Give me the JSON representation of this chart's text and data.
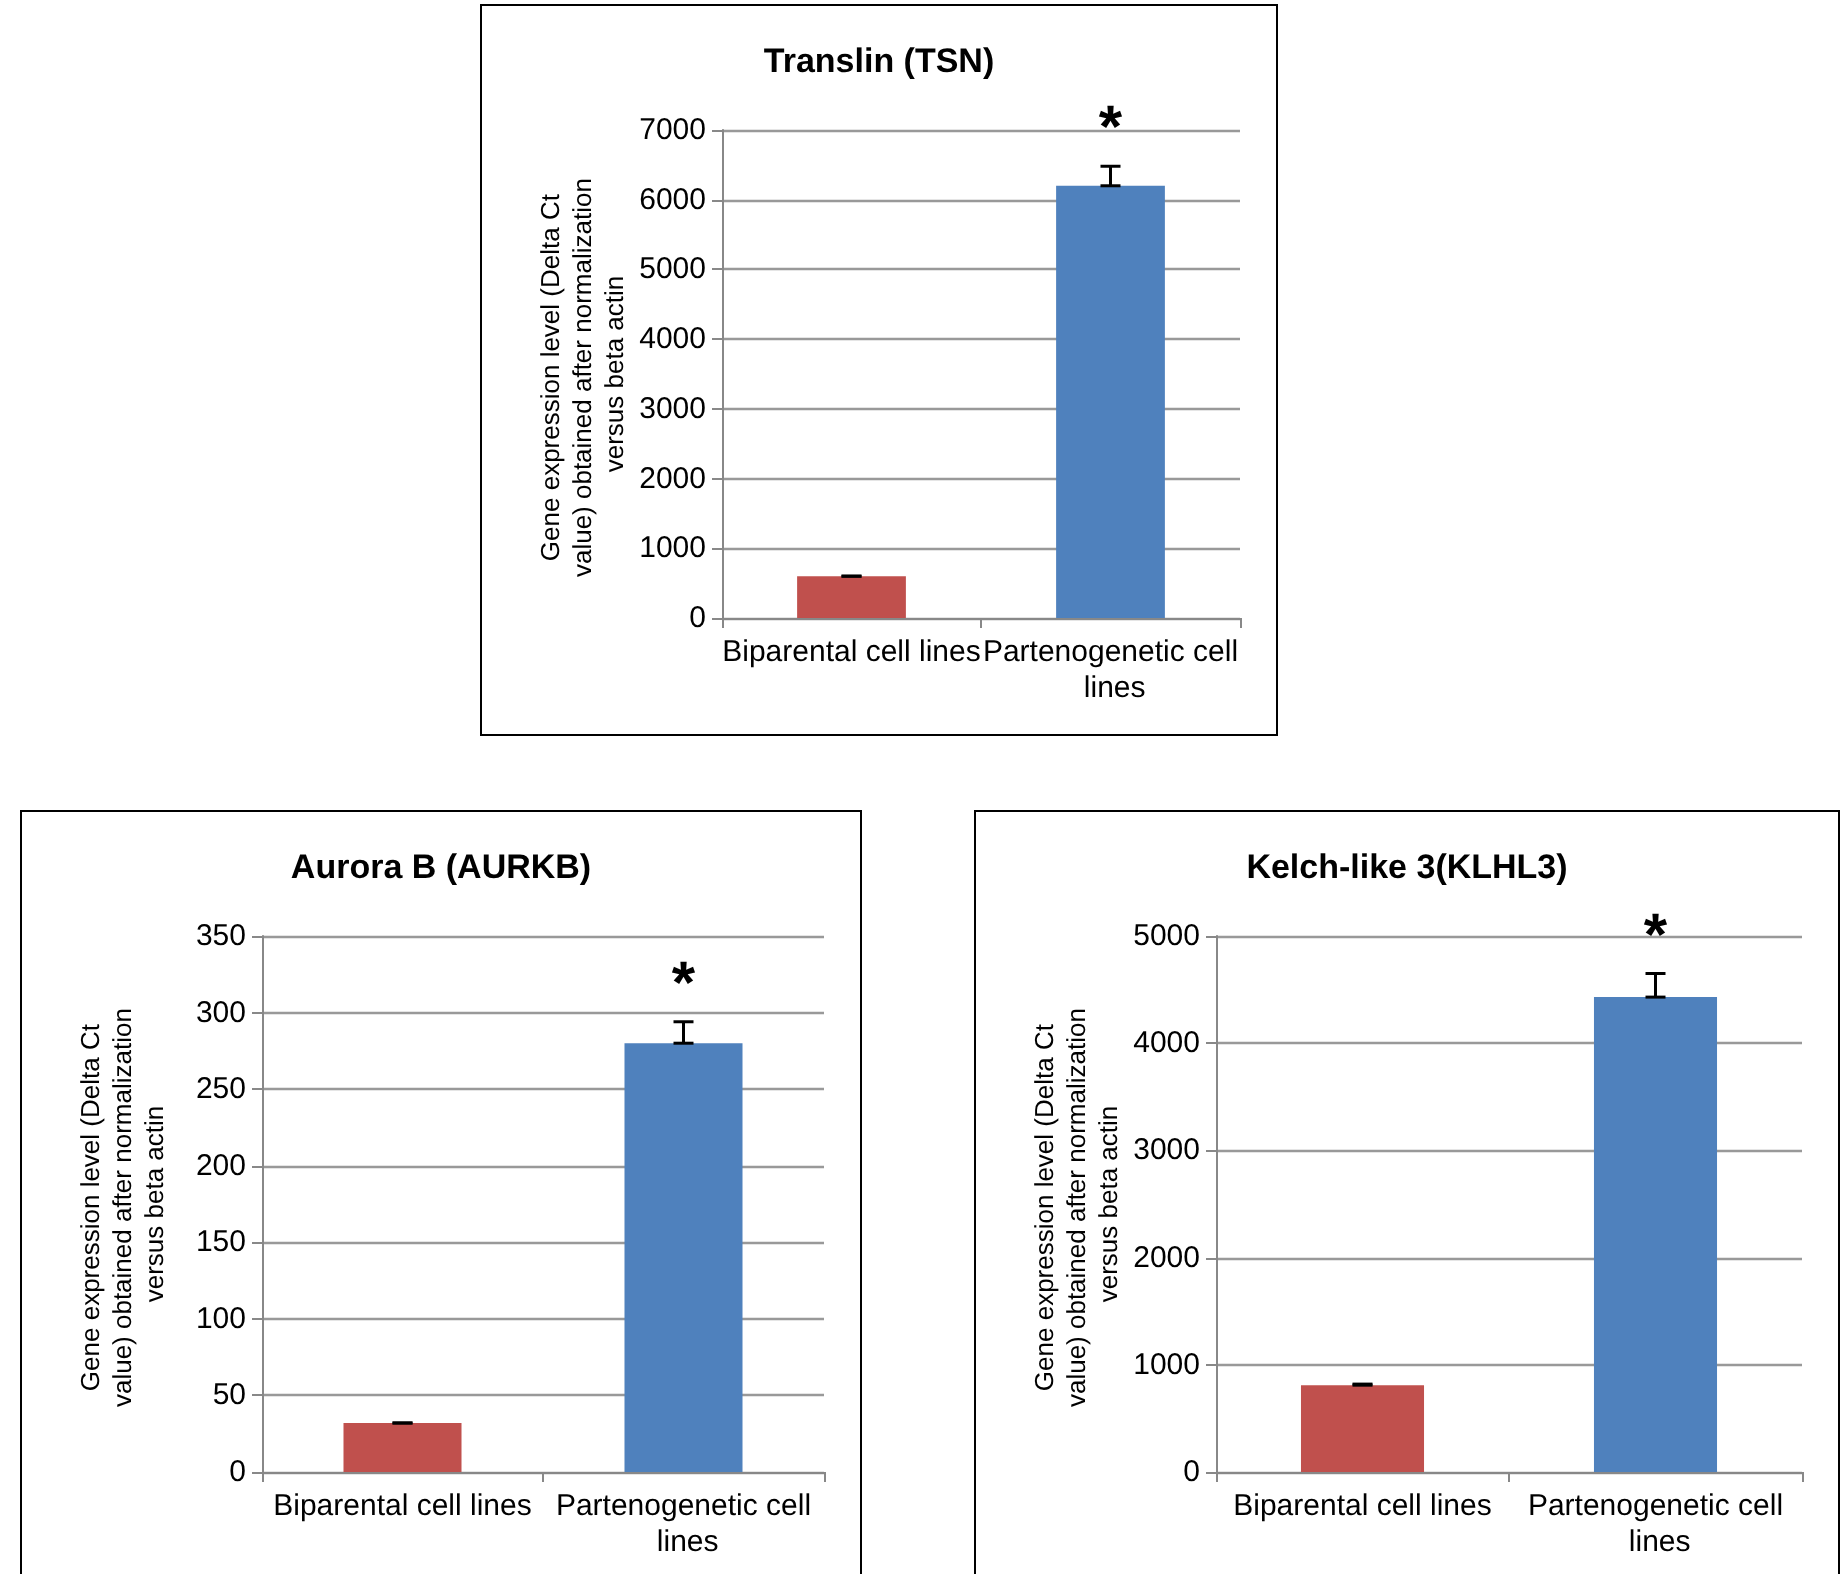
{
  "chart_data": [
    {
      "type": "bar",
      "title": "Translin (TSN)",
      "ylabel": "Gene expression level (Delta Ct value) obtained after normalization versus beta actin",
      "categories": [
        "Biparental cell lines",
        "Partenogenetic cell lines"
      ],
      "values": [
        600,
        6200
      ],
      "colors": [
        "#c0504d",
        "#4f81bd"
      ],
      "errors": [
        [
          600,
          600
        ],
        [
          6200,
          6480
        ]
      ],
      "ylim": [
        0,
        7000
      ],
      "yticks": [
        0,
        1000,
        2000,
        3000,
        4000,
        5000,
        6000,
        7000
      ],
      "grid": "y",
      "annotations": [
        {
          "text": "*",
          "x": "Partenogenetic cell lines",
          "y": 6480
        }
      ]
    },
    {
      "type": "bar",
      "title": "Aurora B (AURKB)",
      "ylabel": "Gene expression level (Delta Ct value) obtained after normalization versus beta actin",
      "categories": [
        "Biparental cell lines",
        "Partenogenetic cell lines"
      ],
      "values": [
        32,
        280
      ],
      "colors": [
        "#c0504d",
        "#4f81bd"
      ],
      "errors": [
        [
          32,
          32
        ],
        [
          280,
          294
        ]
      ],
      "ylim": [
        0,
        350
      ],
      "yticks": [
        0,
        50,
        100,
        150,
        200,
        250,
        300,
        350
      ],
      "grid": "y",
      "annotations": [
        {
          "text": "*",
          "x": "Partenogenetic cell lines",
          "y": 294
        }
      ]
    },
    {
      "type": "bar",
      "title": "Kelch-like 3(KLHL3)",
      "ylabel": "Gene expression level (Delta Ct value) obtained after normalization versus beta actin",
      "categories": [
        "Biparental cell lines",
        "Partenogenetic cell lines"
      ],
      "values": [
        810,
        4430
      ],
      "colors": [
        "#c0504d",
        "#4f81bd"
      ],
      "errors": [
        [
          810,
          820
        ],
        [
          4430,
          4650
        ]
      ],
      "ylim": [
        0,
        5000
      ],
      "yticks": [
        0,
        1000,
        2000,
        3000,
        4000,
        5000
      ],
      "grid": "y",
      "annotations": [
        {
          "text": "*",
          "x": "Partenogenetic cell lines",
          "y": 4650
        }
      ]
    }
  ]
}
